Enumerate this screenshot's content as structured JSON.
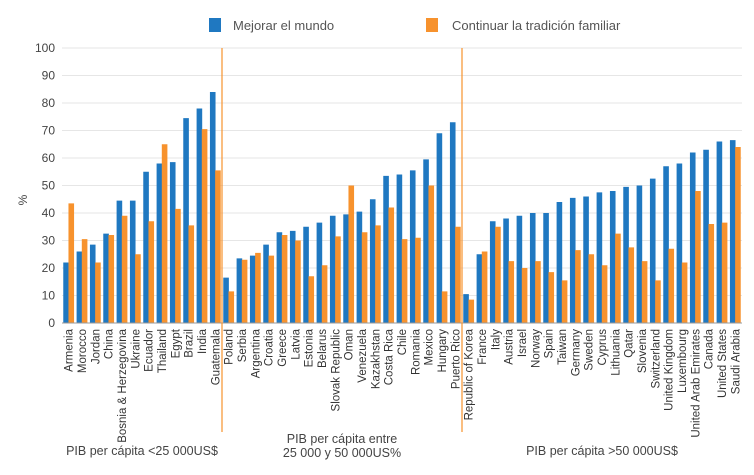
{
  "chart_data": {
    "type": "bar",
    "ylabel": "%",
    "ylim": [
      0,
      100
    ],
    "yticks": [
      0,
      10,
      20,
      30,
      40,
      50,
      60,
      70,
      80,
      90,
      100
    ],
    "grid": true,
    "legend_position": "top",
    "colors": {
      "series1": "#1f78c1",
      "series2": "#f7922d",
      "divider": "#f7922d",
      "grid": "#e6e6e6"
    },
    "categories": [
      "Armenia",
      "Morocco",
      "Jordan",
      "China",
      "Bosnia & Herzegovina",
      "Ukraine",
      "Ecuador",
      "Thailand",
      "Egypt",
      "Brazil",
      "India",
      "Guatemala",
      "Poland",
      "Serbia",
      "Argentina",
      "Croatia",
      "Greece",
      "Latvia",
      "Estonia",
      "Belarus",
      "Slovak Republic",
      "Oman",
      "Venezuela",
      "Kazakhstan",
      "Costa Rica",
      "Chile",
      "Romania",
      "Mexico",
      "Hungary",
      "Puerto Rico",
      "Republic of Korea",
      "France",
      "Italy",
      "Austria",
      "Israel",
      "Norway",
      "Spain",
      "Taiwan",
      "Germany",
      "Sweden",
      "Cyprus",
      "Lithuania",
      "Qatar",
      "Slovenia",
      "Switzerland",
      "United Kingdom",
      "Luxembourg",
      "United Arab Emirates",
      "Canada",
      "United States",
      "Saudi Arabia"
    ],
    "series": [
      {
        "name": "Mejorar el mundo",
        "values": [
          22,
          26,
          28.5,
          32.5,
          44.5,
          44.5,
          55,
          58,
          58.5,
          74.5,
          78,
          84,
          16.5,
          23.5,
          24.5,
          28.5,
          33,
          33.5,
          35,
          36.5,
          39,
          39.5,
          40.5,
          45,
          53.5,
          54,
          55.5,
          59.5,
          69,
          73,
          10.5,
          25,
          37,
          38,
          39,
          40,
          40,
          44,
          45.5,
          46,
          47.5,
          48,
          49.5,
          50,
          52.5,
          57,
          58,
          62,
          63,
          66,
          66.5
        ]
      },
      {
        "name": "Continuar la tradición familiar",
        "values": [
          43.5,
          30.5,
          22,
          32,
          39,
          25,
          37,
          65,
          41.5,
          35.5,
          70.5,
          55.5,
          11.5,
          23,
          25.5,
          24.5,
          32,
          30,
          17,
          21,
          31.5,
          50,
          33,
          35.5,
          42,
          30.5,
          31,
          50,
          11.5,
          35,
          8.5,
          26,
          35,
          22.5,
          20,
          22.5,
          18.5,
          15.5,
          26.5,
          25,
          21,
          32.5,
          27.5,
          22.5,
          15.5,
          27,
          22,
          48,
          36,
          36.5,
          64
        ]
      }
    ],
    "groups": [
      {
        "label": "PIB per cápita <25 000US$",
        "start": 0,
        "end": 11
      },
      {
        "label": "PIB per cápita entre\n25 000 y 50 000US%",
        "start": 12,
        "end": 29
      },
      {
        "label": "PIB per cápita >50 000US$",
        "start": 30,
        "end": 50
      }
    ]
  }
}
